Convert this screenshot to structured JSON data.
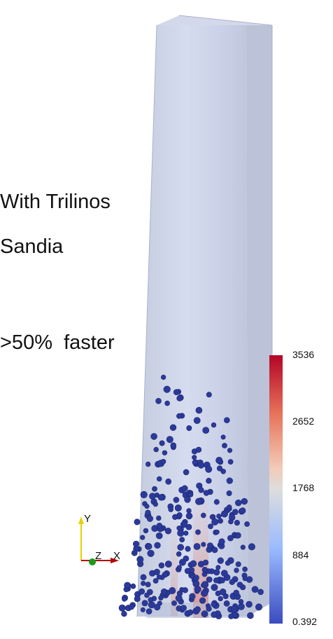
{
  "captions": {
    "line1": "With Trilinos",
    "line2": "Sandia",
    "line3": ">50%  faster"
  },
  "colorbar": {
    "ticks": [
      "3536",
      "2652",
      "1768",
      "884",
      "0.392"
    ],
    "colors": [
      "#b40426",
      "#f4987a",
      "#dddddd",
      "#8db0fe",
      "#3b4cc0"
    ]
  },
  "axes_triad": {
    "labels": {
      "x": "X",
      "y": "Y",
      "z": "Z"
    },
    "colors": {
      "x": "#b30000",
      "y": "#e6d200",
      "z": "#1a9a1a"
    }
  },
  "scene": {
    "column_color": "#b9c4dc",
    "particle_color": "#2b3a9a",
    "particle_count_visible": 300
  }
}
